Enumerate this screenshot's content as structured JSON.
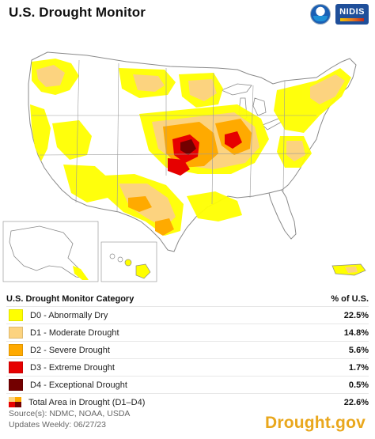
{
  "header": {
    "title": "U.S. Drought Monitor",
    "logo_left_name": "noaa-logo",
    "logo_right_text": "NIDIS"
  },
  "colors": {
    "d0": "#ffff00",
    "d1": "#fcd37f",
    "d2": "#ffaa00",
    "d3": "#e60000",
    "d4": "#730000",
    "map_fill": "#ffffff",
    "state_line": "#9a9a9a"
  },
  "legend": {
    "category_header": "U.S. Drought Monitor Category",
    "percent_header": "% of U.S.",
    "items": [
      {
        "label": "D0 - Abnormally Dry",
        "percent": "22.5%"
      },
      {
        "label": "D1 - Moderate Drought",
        "percent": "14.8%"
      },
      {
        "label": "D2 - Severe Drought",
        "percent": "5.6%"
      },
      {
        "label": "D3 - Extreme Drought",
        "percent": "1.7%"
      },
      {
        "label": "D4 - Exceptional Drought",
        "percent": "0.5%"
      },
      {
        "label": "Total Area in Drought (D1–D4)",
        "percent": "22.6%"
      }
    ]
  },
  "footer": {
    "source": "Source(s): NDMC, NOAA, USDA",
    "updated": "Updates Weekly: 06/27/23",
    "brand": "Drought.gov"
  }
}
